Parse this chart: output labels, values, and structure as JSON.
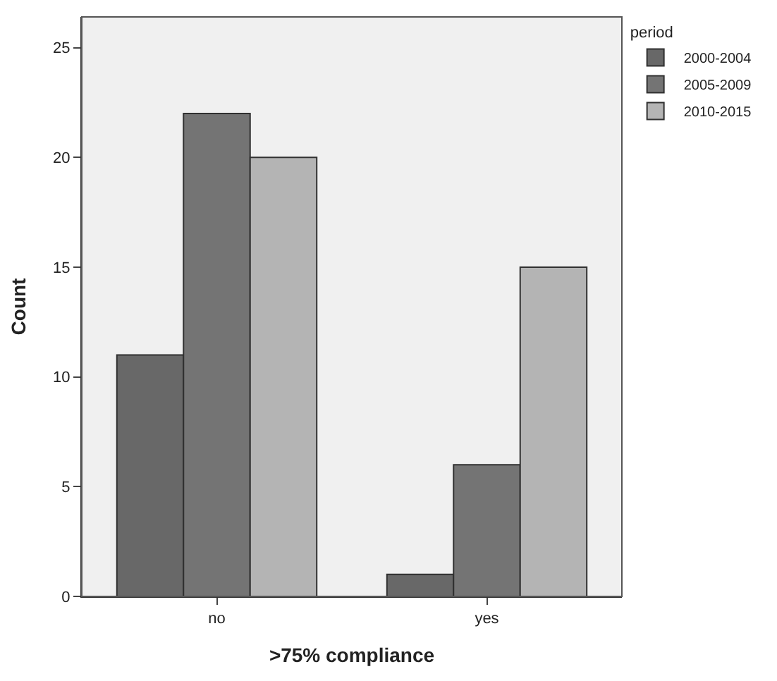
{
  "chart_data": {
    "type": "bar",
    "xlabel": ">75% compliance",
    "ylabel": "Count",
    "legend_title": "period",
    "categories": [
      "no",
      "yes"
    ],
    "series": [
      {
        "name": "2000-2004",
        "color": "#686868",
        "values": [
          11,
          1
        ]
      },
      {
        "name": "2005-2009",
        "color": "#747474",
        "values": [
          22,
          6
        ]
      },
      {
        "name": "2010-2015",
        "color": "#b4b4b4",
        "values": [
          20,
          15
        ]
      }
    ],
    "ylim": [
      0,
      26.4
    ],
    "yticks": [
      0,
      5,
      10,
      15,
      20,
      25
    ],
    "grid": false,
    "legend": "top right"
  }
}
